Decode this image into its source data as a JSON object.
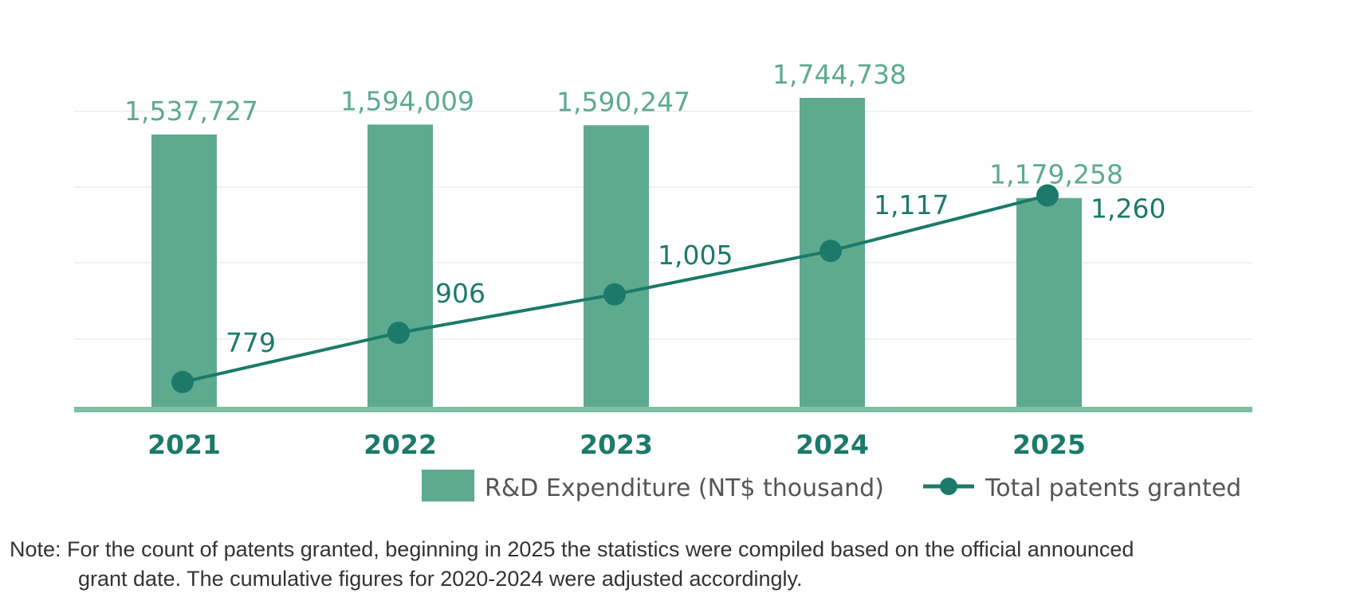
{
  "chart_data": {
    "type": "bar",
    "categories": [
      "2021",
      "2022",
      "2023",
      "2024",
      "2025"
    ],
    "series": [
      {
        "name": "R&D Expenditure (NT$ thousand)",
        "type": "bar",
        "values": [
          1537727,
          1594009,
          1590247,
          1744738,
          1179258
        ],
        "labels": [
          "1,537,727",
          "1,594,009",
          "1,590,247",
          "1,744,738",
          "1,179,258"
        ],
        "color": "#5daa8f"
      },
      {
        "name": "Total patents granted",
        "type": "line",
        "values": [
          779,
          906,
          1005,
          1117,
          1260
        ],
        "labels": [
          "779",
          "906",
          "1,005",
          "1,117",
          "1,260"
        ],
        "color": "#1b7a69"
      }
    ],
    "legend_position": "bottom-right",
    "grid": true,
    "baseline_color": "#7fbfa6",
    "axis_label_color": "#1b7a69"
  },
  "note": {
    "line1": "Note: For the count of patents granted, beginning in 2025 the statistics were compiled based on the official announced",
    "line2": "grant date. The cumulative figures for 2020-2024 were adjusted accordingly."
  }
}
